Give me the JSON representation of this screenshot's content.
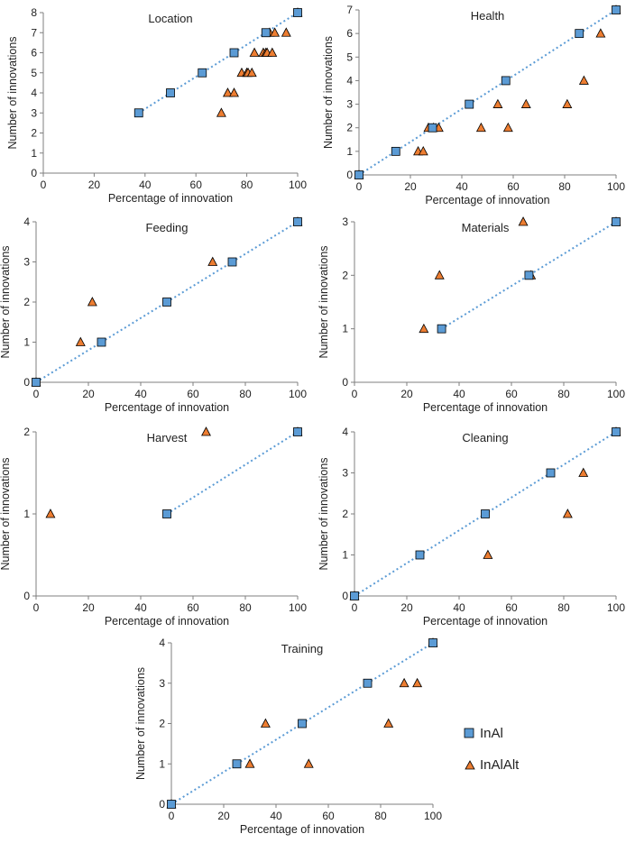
{
  "colors": {
    "inal_fill": "#5b9bd5",
    "inalalt_fill": "#ed7d31",
    "trend": "#5b9bd5",
    "axis": "#7f7f7f",
    "marker_stroke": "#000000"
  },
  "legend": {
    "inal_label": "InAl",
    "inalalt_label": "InAlAlt",
    "placement": "right of Training panel"
  },
  "chart_data": [
    {
      "type": "scatter",
      "title": "Location",
      "xlabel": "Percentage of innovation",
      "ylabel": "Number of innovations",
      "xlim": [
        0,
        100
      ],
      "ylim": [
        0,
        8
      ],
      "xticks": [
        0,
        20,
        40,
        60,
        80,
        100
      ],
      "yticks": [
        0,
        1,
        2,
        3,
        4,
        5,
        6,
        7,
        8
      ],
      "grid": false,
      "trend_series": "InAl",
      "series": [
        {
          "name": "InAl",
          "marker": "square",
          "x": [
            37.5,
            50,
            62.5,
            75,
            87.5,
            100
          ],
          "y": [
            3,
            4,
            5,
            6,
            7,
            8
          ]
        },
        {
          "name": "InAlAlt",
          "marker": "triangle",
          "x": [
            70,
            72.5,
            75,
            78,
            80,
            80.5,
            82,
            83,
            86.5,
            87.5,
            88,
            89,
            90,
            91,
            95.5,
            100
          ],
          "y": [
            3,
            4,
            4,
            5,
            5,
            5,
            5,
            6,
            6,
            6,
            6,
            7,
            6,
            7,
            7,
            8
          ]
        }
      ]
    },
    {
      "type": "scatter",
      "title": "Health",
      "xlabel": "Percentage of innovation",
      "ylabel": "Number of innovations",
      "xlim": [
        0,
        100
      ],
      "ylim": [
        0,
        7
      ],
      "xticks": [
        0,
        20,
        40,
        60,
        80,
        100
      ],
      "yticks": [
        0,
        1,
        2,
        3,
        4,
        5,
        6,
        7
      ],
      "grid": false,
      "trend_series": "InAl",
      "series": [
        {
          "name": "InAl",
          "marker": "square",
          "x": [
            0,
            14.3,
            28.6,
            42.9,
            57.1,
            85.7,
            100
          ],
          "y": [
            0,
            1,
            2,
            3,
            4,
            6,
            7
          ]
        },
        {
          "name": "InAlAlt",
          "marker": "triangle",
          "x": [
            0,
            23,
            25,
            27,
            29,
            31,
            47.5,
            54,
            58,
            65,
            81,
            87.5,
            94,
            100
          ],
          "y": [
            0,
            1,
            1,
            2,
            2,
            2,
            2,
            3,
            2,
            3,
            3,
            4,
            6,
            7
          ]
        }
      ]
    },
    {
      "type": "scatter",
      "title": "Feeding",
      "xlabel": "Percentage of innovation",
      "ylabel": "Number of innovations",
      "xlim": [
        0,
        100
      ],
      "ylim": [
        0,
        4
      ],
      "xticks": [
        0,
        20,
        40,
        60,
        80,
        100
      ],
      "yticks": [
        0,
        1,
        2,
        3,
        4
      ],
      "grid": false,
      "trend_series": "InAl",
      "series": [
        {
          "name": "InAl",
          "marker": "square",
          "x": [
            0,
            25,
            50,
            75,
            100
          ],
          "y": [
            0,
            1,
            2,
            3,
            4
          ]
        },
        {
          "name": "InAlAlt",
          "marker": "triangle",
          "x": [
            0,
            17,
            21.5,
            67.5,
            100
          ],
          "y": [
            0,
            1,
            2,
            3,
            4
          ]
        }
      ]
    },
    {
      "type": "scatter",
      "title": "Materials",
      "xlabel": "Percentage of innovation",
      "ylabel": "Number of innovations",
      "xlim": [
        0,
        100
      ],
      "ylim": [
        0,
        3
      ],
      "xticks": [
        0,
        20,
        40,
        60,
        80,
        100
      ],
      "yticks": [
        0,
        1,
        2,
        3
      ],
      "grid": false,
      "trend_series": "InAl",
      "series": [
        {
          "name": "InAl",
          "marker": "square",
          "x": [
            33.3,
            66.7,
            100
          ],
          "y": [
            1,
            2,
            3
          ]
        },
        {
          "name": "InAlAlt",
          "marker": "triangle",
          "x": [
            26.5,
            32.5,
            64.5,
            67.5,
            100
          ],
          "y": [
            1,
            2,
            3,
            2,
            3
          ]
        }
      ]
    },
    {
      "type": "scatter",
      "title": "Harvest",
      "xlabel": "Percentage of innovation",
      "ylabel": "Number of innovations",
      "xlim": [
        0,
        100
      ],
      "ylim": [
        0,
        2
      ],
      "xticks": [
        0,
        20,
        40,
        60,
        80,
        100
      ],
      "yticks": [
        0,
        1,
        2
      ],
      "grid": false,
      "trend_series": "InAl",
      "series": [
        {
          "name": "InAl",
          "marker": "square",
          "x": [
            50,
            100
          ],
          "y": [
            1,
            2
          ]
        },
        {
          "name": "InAlAlt",
          "marker": "triangle",
          "x": [
            5.5,
            65,
            100
          ],
          "y": [
            1,
            2,
            2
          ]
        }
      ]
    },
    {
      "type": "scatter",
      "title": "Cleaning",
      "xlabel": "Percentage of innovation",
      "ylabel": "Number of innovations",
      "xlim": [
        0,
        100
      ],
      "ylim": [
        0,
        4
      ],
      "xticks": [
        0,
        20,
        40,
        60,
        80,
        100
      ],
      "yticks": [
        0,
        1,
        2,
        3,
        4
      ],
      "grid": false,
      "trend_series": "InAl",
      "series": [
        {
          "name": "InAl",
          "marker": "square",
          "x": [
            0,
            25,
            50,
            75,
            100
          ],
          "y": [
            0,
            1,
            2,
            3,
            4
          ]
        },
        {
          "name": "InAlAlt",
          "marker": "triangle",
          "x": [
            0,
            51,
            81.5,
            87.5,
            100
          ],
          "y": [
            0,
            1,
            2,
            3,
            4
          ]
        }
      ]
    },
    {
      "type": "scatter",
      "title": "Training",
      "xlabel": "Percentage of innovation",
      "ylabel": "Number of innovations",
      "xlim": [
        0,
        100
      ],
      "ylim": [
        0,
        4
      ],
      "xticks": [
        0,
        20,
        40,
        60,
        80,
        100
      ],
      "yticks": [
        0,
        1,
        2,
        3,
        4
      ],
      "grid": false,
      "trend_series": "InAl",
      "series": [
        {
          "name": "InAl",
          "marker": "square",
          "x": [
            0,
            25,
            50,
            75,
            100
          ],
          "y": [
            0,
            1,
            2,
            3,
            4
          ]
        },
        {
          "name": "InAlAlt",
          "marker": "triangle",
          "x": [
            0,
            30,
            36,
            52.5,
            83,
            89,
            94,
            100
          ],
          "y": [
            0,
            1,
            2,
            1,
            2,
            3,
            3,
            4
          ]
        }
      ]
    }
  ]
}
